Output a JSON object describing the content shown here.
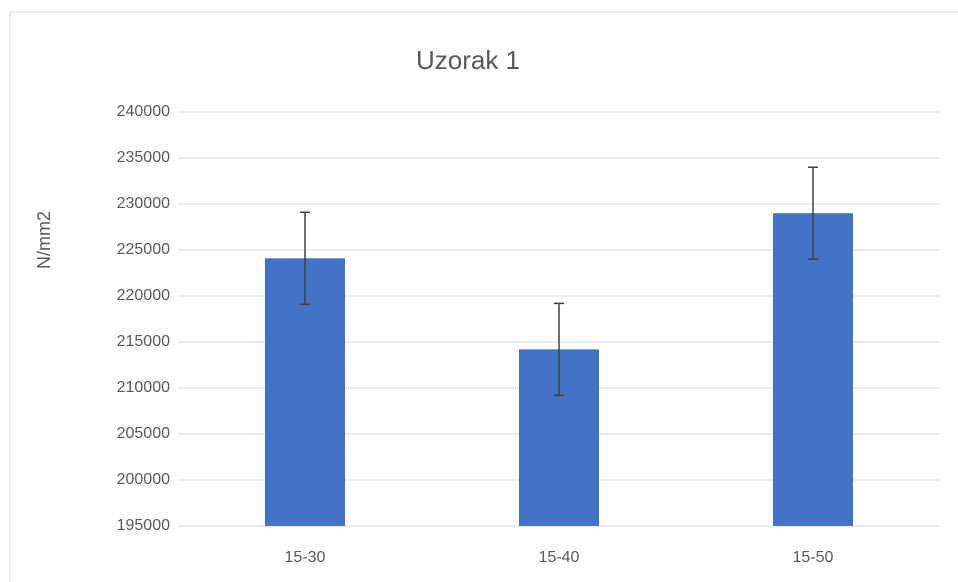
{
  "chart_data": {
    "type": "bar",
    "title": "Uzorak 1",
    "y_label": "N/mm2",
    "categories": [
      "15-30",
      "15-40",
      "15-50"
    ],
    "values": [
      224100,
      214200,
      229000
    ],
    "errors": [
      5000,
      5000,
      5000
    ],
    "color": "#4472c4",
    "ylim": [
      195000,
      240000
    ],
    "yticks": [
      195000,
      200000,
      205000,
      210000,
      215000,
      220000,
      225000,
      230000,
      235000,
      240000
    ],
    "grid": true
  }
}
